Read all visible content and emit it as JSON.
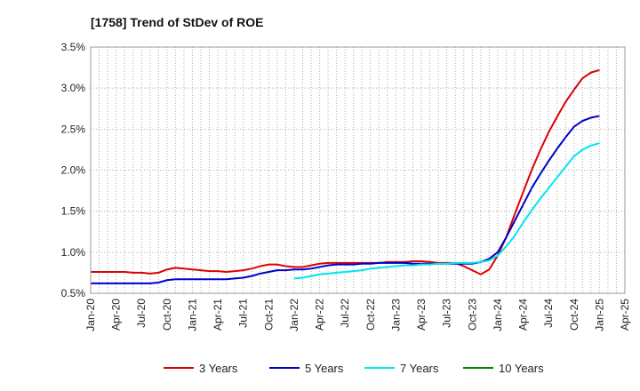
{
  "chart_data": {
    "type": "line",
    "title": "[1758]  Trend of StDev of ROE",
    "xlabel": "",
    "ylabel": "",
    "ylim": [
      0.5,
      3.5
    ],
    "xlim": [
      "2020-01",
      "2025-04"
    ],
    "y_ticks": [
      "0.5%",
      "1.0%",
      "1.5%",
      "2.0%",
      "2.5%",
      "3.0%",
      "3.5%"
    ],
    "y_tick_values": [
      0.5,
      1.0,
      1.5,
      2.0,
      2.5,
      3.0,
      3.5
    ],
    "x_ticks": [
      "Jan-20",
      "Apr-20",
      "Jul-20",
      "Oct-20",
      "Jan-21",
      "Apr-21",
      "Jul-21",
      "Oct-21",
      "Jan-22",
      "Apr-22",
      "Jul-22",
      "Oct-22",
      "Jan-23",
      "Apr-23",
      "Jul-23",
      "Oct-23",
      "Jan-24",
      "Apr-24",
      "Jul-24",
      "Oct-24",
      "Jan-25",
      "Apr-25"
    ],
    "x_tick_values": [
      "2020-01",
      "2020-04",
      "2020-07",
      "2020-10",
      "2021-01",
      "2021-04",
      "2021-07",
      "2021-10",
      "2022-01",
      "2022-04",
      "2022-07",
      "2022-10",
      "2023-01",
      "2023-04",
      "2023-07",
      "2023-10",
      "2024-01",
      "2024-04",
      "2024-07",
      "2024-10",
      "2025-01",
      "2025-04"
    ],
    "grid": true,
    "legend_position": "bottom",
    "series": [
      {
        "name": "3 Years",
        "color": "#dd0000",
        "x": [
          "2020-01",
          "2020-02",
          "2020-03",
          "2020-04",
          "2020-05",
          "2020-06",
          "2020-07",
          "2020-08",
          "2020-09",
          "2020-10",
          "2020-11",
          "2020-12",
          "2021-01",
          "2021-02",
          "2021-03",
          "2021-04",
          "2021-05",
          "2021-06",
          "2021-07",
          "2021-08",
          "2021-09",
          "2021-10",
          "2021-11",
          "2021-12",
          "2022-01",
          "2022-02",
          "2022-03",
          "2022-04",
          "2022-05",
          "2022-06",
          "2022-07",
          "2022-08",
          "2022-09",
          "2022-10",
          "2022-11",
          "2022-12",
          "2023-01",
          "2023-02",
          "2023-03",
          "2023-04",
          "2023-05",
          "2023-06",
          "2023-07",
          "2023-08",
          "2023-09",
          "2023-10",
          "2023-11",
          "2023-12",
          "2024-01",
          "2024-02",
          "2024-03",
          "2024-04",
          "2024-05",
          "2024-06",
          "2024-07",
          "2024-08",
          "2024-09",
          "2024-10",
          "2024-11",
          "2024-12",
          "2025-01"
        ],
        "values": [
          0.76,
          0.76,
          0.76,
          0.76,
          0.76,
          0.75,
          0.75,
          0.74,
          0.75,
          0.79,
          0.81,
          0.8,
          0.79,
          0.78,
          0.77,
          0.77,
          0.76,
          0.77,
          0.78,
          0.8,
          0.83,
          0.85,
          0.85,
          0.83,
          0.82,
          0.82,
          0.84,
          0.86,
          0.87,
          0.87,
          0.87,
          0.87,
          0.87,
          0.87,
          0.87,
          0.88,
          0.88,
          0.88,
          0.89,
          0.89,
          0.88,
          0.87,
          0.87,
          0.87,
          0.83,
          0.78,
          0.73,
          0.79,
          0.96,
          1.18,
          1.46,
          1.73,
          2.0,
          2.24,
          2.46,
          2.65,
          2.83,
          2.98,
          3.12,
          3.19,
          3.22
        ]
      },
      {
        "name": "5 Years",
        "color": "#0000cc",
        "x": [
          "2020-01",
          "2020-02",
          "2020-03",
          "2020-04",
          "2020-05",
          "2020-06",
          "2020-07",
          "2020-08",
          "2020-09",
          "2020-10",
          "2020-11",
          "2020-12",
          "2021-01",
          "2021-02",
          "2021-03",
          "2021-04",
          "2021-05",
          "2021-06",
          "2021-07",
          "2021-08",
          "2021-09",
          "2021-10",
          "2021-11",
          "2021-12",
          "2022-01",
          "2022-02",
          "2022-03",
          "2022-04",
          "2022-05",
          "2022-06",
          "2022-07",
          "2022-08",
          "2022-09",
          "2022-10",
          "2022-11",
          "2022-12",
          "2023-01",
          "2023-02",
          "2023-03",
          "2023-04",
          "2023-05",
          "2023-06",
          "2023-07",
          "2023-08",
          "2023-09",
          "2023-10",
          "2023-11",
          "2023-12",
          "2024-01",
          "2024-02",
          "2024-03",
          "2024-04",
          "2024-05",
          "2024-06",
          "2024-07",
          "2024-08",
          "2024-09",
          "2024-10",
          "2024-11",
          "2024-12",
          "2025-01"
        ],
        "values": [
          0.62,
          0.62,
          0.62,
          0.62,
          0.62,
          0.62,
          0.62,
          0.62,
          0.63,
          0.66,
          0.67,
          0.67,
          0.67,
          0.67,
          0.67,
          0.67,
          0.67,
          0.68,
          0.69,
          0.71,
          0.74,
          0.76,
          0.78,
          0.78,
          0.79,
          0.79,
          0.8,
          0.82,
          0.84,
          0.85,
          0.85,
          0.85,
          0.86,
          0.86,
          0.87,
          0.87,
          0.87,
          0.87,
          0.86,
          0.86,
          0.86,
          0.86,
          0.86,
          0.86,
          0.86,
          0.86,
          0.88,
          0.92,
          1.0,
          1.18,
          1.38,
          1.58,
          1.78,
          1.95,
          2.11,
          2.26,
          2.4,
          2.53,
          2.6,
          2.64,
          2.66
        ]
      },
      {
        "name": "7 Years",
        "color": "#00e5ee",
        "x": [
          "2022-01",
          "2022-02",
          "2022-03",
          "2022-04",
          "2022-05",
          "2022-06",
          "2022-07",
          "2022-08",
          "2022-09",
          "2022-10",
          "2022-11",
          "2022-12",
          "2023-01",
          "2023-02",
          "2023-03",
          "2023-04",
          "2023-05",
          "2023-06",
          "2023-07",
          "2023-08",
          "2023-09",
          "2023-10",
          "2023-11",
          "2023-12",
          "2024-01",
          "2024-02",
          "2024-03",
          "2024-04",
          "2024-05",
          "2024-06",
          "2024-07",
          "2024-08",
          "2024-09",
          "2024-10",
          "2024-11",
          "2024-12",
          "2025-01"
        ],
        "values": [
          0.68,
          0.69,
          0.71,
          0.73,
          0.74,
          0.75,
          0.76,
          0.77,
          0.78,
          0.8,
          0.81,
          0.82,
          0.83,
          0.84,
          0.84,
          0.85,
          0.85,
          0.86,
          0.86,
          0.87,
          0.87,
          0.87,
          0.88,
          0.9,
          0.96,
          1.07,
          1.2,
          1.36,
          1.51,
          1.65,
          1.78,
          1.91,
          2.04,
          2.17,
          2.25,
          2.3,
          2.33
        ]
      },
      {
        "name": "10 Years",
        "color": "#008800",
        "x": [],
        "values": []
      }
    ]
  }
}
